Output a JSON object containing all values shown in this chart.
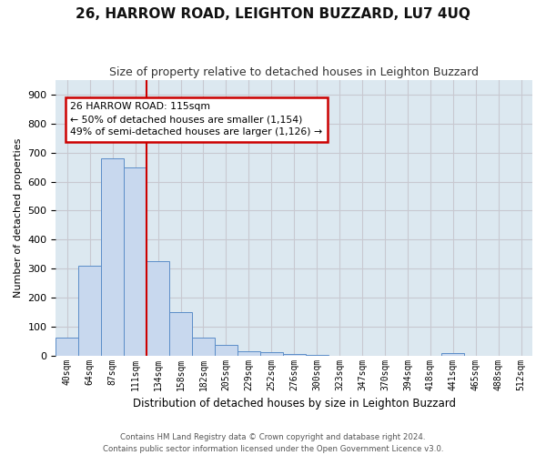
{
  "title": "26, HARROW ROAD, LEIGHTON BUZZARD, LU7 4UQ",
  "subtitle": "Size of property relative to detached houses in Leighton Buzzard",
  "xlabel": "Distribution of detached houses by size in Leighton Buzzard",
  "ylabel": "Number of detached properties",
  "categories": [
    "40sqm",
    "64sqm",
    "87sqm",
    "111sqm",
    "134sqm",
    "158sqm",
    "182sqm",
    "205sqm",
    "229sqm",
    "252sqm",
    "276sqm",
    "300sqm",
    "323sqm",
    "347sqm",
    "370sqm",
    "394sqm",
    "418sqm",
    "441sqm",
    "465sqm",
    "488sqm",
    "512sqm"
  ],
  "values": [
    63,
    310,
    680,
    650,
    325,
    150,
    63,
    35,
    15,
    10,
    5,
    2,
    0,
    0,
    0,
    0,
    0,
    8,
    0,
    0,
    0
  ],
  "bar_color": "#c8d8ee",
  "bar_edge_color": "#5b8dc8",
  "vline_color": "#cc0000",
  "vline_x": 3.5,
  "annotation_line1": "26 HARROW ROAD: 115sqm",
  "annotation_line2": "← 50% of detached houses are smaller (1,154)",
  "annotation_line3": "49% of semi-detached houses are larger (1,126) →",
  "annotation_box_color": "#cc0000",
  "annotation_bg": "#ffffff",
  "ylim": [
    0,
    950
  ],
  "yticks": [
    0,
    100,
    200,
    300,
    400,
    500,
    600,
    700,
    800,
    900
  ],
  "grid_color": "#c8c8d0",
  "bg_color": "#dce8f0",
  "fig_bg_color": "#ffffff",
  "title_fontsize": 11,
  "subtitle_fontsize": 9,
  "footer": "Contains HM Land Registry data © Crown copyright and database right 2024.\nContains public sector information licensed under the Open Government Licence v3.0."
}
